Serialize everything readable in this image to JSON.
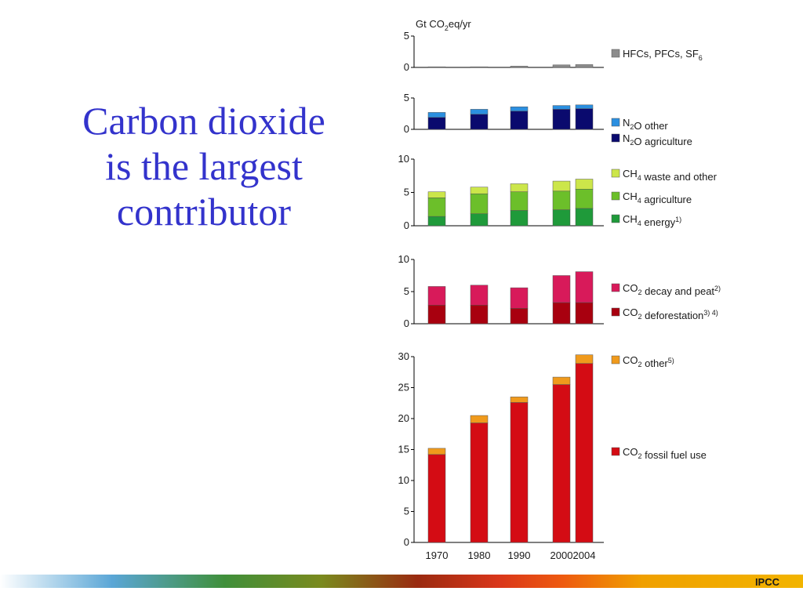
{
  "title_lines": [
    "Carbon dioxide",
    "is the largest",
    "contributor"
  ],
  "footer": {
    "logo_text": "IPCC"
  },
  "chart_data": {
    "type": "bar",
    "stacked": true,
    "unit_label": "Gt CO2eq/yr",
    "categories": [
      "1970",
      "1980",
      "1990",
      "2000",
      "2004"
    ],
    "panels": [
      {
        "ylim": [
          0,
          5
        ],
        "yticks": [
          0,
          5
        ],
        "series": [
          {
            "name": "HFCs, PFCs, SF6",
            "color": "#8c8c8c",
            "values": [
              0.1,
              0.1,
              0.2,
              0.4,
              0.45
            ]
          }
        ]
      },
      {
        "ylim": [
          0,
          5
        ],
        "yticks": [
          0,
          5
        ],
        "series": [
          {
            "name": "N2O agriculture",
            "color": "#0a0a6e",
            "values": [
              1.9,
              2.4,
              2.9,
              3.2,
              3.3
            ]
          },
          {
            "name": "N2O other",
            "color": "#2b8fe0",
            "values": [
              0.8,
              0.8,
              0.7,
              0.6,
              0.6
            ]
          }
        ]
      },
      {
        "ylim": [
          0,
          10
        ],
        "yticks": [
          0,
          5,
          10
        ],
        "series": [
          {
            "name": "CH4 energy",
            "sup": "1)",
            "color": "#1f9a3a",
            "values": [
              1.4,
              1.8,
              2.3,
              2.4,
              2.6
            ]
          },
          {
            "name": "CH4 agriculture",
            "color": "#6cbf2a",
            "values": [
              2.8,
              3.0,
              2.8,
              2.8,
              2.9
            ]
          },
          {
            "name": "CH4 waste and other",
            "color": "#cce64a",
            "values": [
              0.9,
              1.0,
              1.2,
              1.5,
              1.5
            ]
          }
        ]
      },
      {
        "ylim": [
          0,
          10
        ],
        "yticks": [
          0,
          5,
          10
        ],
        "series": [
          {
            "name": "CO2 deforestation",
            "sup": "3) 4)",
            "color": "#a8000f",
            "values": [
              2.9,
              2.9,
              2.4,
              3.3,
              3.3
            ]
          },
          {
            "name": "CO2 decay and peat",
            "sup": "2)",
            "color": "#d81a5a",
            "values": [
              2.9,
              3.1,
              3.2,
              4.2,
              4.8
            ]
          }
        ]
      },
      {
        "ylim": [
          0,
          30
        ],
        "yticks": [
          0,
          5,
          10,
          15,
          20,
          25,
          30
        ],
        "series": [
          {
            "name": "CO2 fossil fuel use",
            "color": "#d40c14",
            "values": [
              14.2,
              19.3,
              22.6,
              25.5,
              28.9
            ]
          },
          {
            "name": "CO2 other",
            "sup": "5)",
            "color": "#f09a1c",
            "values": [
              1.0,
              1.2,
              0.9,
              1.2,
              1.4
            ]
          }
        ]
      }
    ]
  }
}
